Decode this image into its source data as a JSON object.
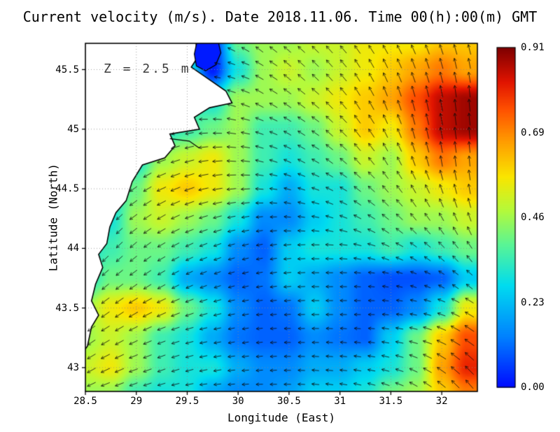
{
  "title": "Current velocity (m/s). Date 2018.11.06. Time 00(h):00(m) GMT",
  "annotation_z": "Z = 2.5 m",
  "axes": {
    "xlabel": "Longitude (East)",
    "ylabel": "Latitude (North)",
    "xlim": [
      28.5,
      32.35
    ],
    "ylim": [
      42.8,
      45.72
    ],
    "xtick_labels": [
      "28.5",
      "29",
      "29.5",
      "30",
      "30.5",
      "31",
      "31.5",
      "32"
    ],
    "xtick_values": [
      28.5,
      29,
      29.5,
      30,
      30.5,
      31,
      31.5,
      32
    ],
    "ytick_labels": [
      "43",
      "43.5",
      "44",
      "44.5",
      "45",
      "45.5"
    ],
    "ytick_values": [
      43,
      43.5,
      44,
      44.5,
      45,
      45.5
    ],
    "grid": "dotted"
  },
  "colorbar": {
    "min": 0.0,
    "max": 0.91,
    "tick_labels": [
      "0.91",
      "0.69",
      "0.46",
      "0.23",
      "0.00"
    ],
    "tick_values": [
      0.91,
      0.6825,
      0.455,
      0.2275,
      0.0
    ]
  },
  "chart_data": {
    "type": "heatmap",
    "title": "Current velocity (m/s). Date 2018.11.06. Time 00(h):00(m) GMT",
    "units": "m/s",
    "depth_label": "Z = 2.5 m",
    "date": "2018.11.06",
    "time": "00(h):00(m) GMT",
    "xlabel": "Longitude (East)",
    "ylabel": "Latitude (North)",
    "xlim": [
      28.5,
      32.35
    ],
    "ylim": [
      42.8,
      45.72
    ],
    "vmin": 0.0,
    "vmax": 0.91,
    "lon": [
      28.5,
      28.75,
      29.0,
      29.25,
      29.5,
      29.75,
      30.0,
      30.25,
      30.5,
      30.75,
      31.0,
      31.25,
      31.5,
      31.75,
      32.0,
      32.25
    ],
    "lat_north_to_south": [
      45.75,
      45.5,
      45.25,
      45.0,
      44.75,
      44.5,
      44.25,
      44.0,
      43.75,
      43.5,
      43.25,
      43.0,
      42.8
    ],
    "speed": [
      [
        0.3,
        0.3,
        0.3,
        0.3,
        0.3,
        0.02,
        0.4,
        0.45,
        0.45,
        0.5,
        0.5,
        0.55,
        0.55,
        0.55,
        0.6,
        0.6
      ],
      [
        0.3,
        0.3,
        0.3,
        0.3,
        0.3,
        0.02,
        0.3,
        0.45,
        0.5,
        0.45,
        0.5,
        0.55,
        0.6,
        0.65,
        0.7,
        0.65
      ],
      [
        0.3,
        0.3,
        0.3,
        0.3,
        0.35,
        0.3,
        0.45,
        0.45,
        0.45,
        0.5,
        0.55,
        0.6,
        0.65,
        0.75,
        0.85,
        0.88
      ],
      [
        0.3,
        0.3,
        0.3,
        0.3,
        0.35,
        0.4,
        0.45,
        0.35,
        0.35,
        0.4,
        0.5,
        0.6,
        0.55,
        0.7,
        0.85,
        0.88
      ],
      [
        0.3,
        0.3,
        0.3,
        0.45,
        0.5,
        0.55,
        0.45,
        0.35,
        0.3,
        0.35,
        0.4,
        0.5,
        0.45,
        0.6,
        0.7,
        0.65
      ],
      [
        0.3,
        0.3,
        0.4,
        0.55,
        0.6,
        0.55,
        0.45,
        0.3,
        0.2,
        0.3,
        0.3,
        0.4,
        0.45,
        0.5,
        0.55,
        0.6
      ],
      [
        0.3,
        0.3,
        0.45,
        0.5,
        0.45,
        0.4,
        0.3,
        0.15,
        0.15,
        0.25,
        0.3,
        0.35,
        0.4,
        0.45,
        0.45,
        0.5
      ],
      [
        0.3,
        0.35,
        0.4,
        0.4,
        0.35,
        0.3,
        0.15,
        0.1,
        0.25,
        0.3,
        0.3,
        0.3,
        0.35,
        0.3,
        0.35,
        0.4
      ],
      [
        0.3,
        0.4,
        0.4,
        0.35,
        0.2,
        0.15,
        0.1,
        0.12,
        0.25,
        0.2,
        0.15,
        0.1,
        0.08,
        0.08,
        0.1,
        0.25
      ],
      [
        0.45,
        0.55,
        0.6,
        0.55,
        0.4,
        0.3,
        0.15,
        0.1,
        0.12,
        0.25,
        0.15,
        0.1,
        0.1,
        0.15,
        0.3,
        0.55
      ],
      [
        0.45,
        0.5,
        0.45,
        0.35,
        0.3,
        0.2,
        0.12,
        0.1,
        0.1,
        0.15,
        0.12,
        0.1,
        0.25,
        0.4,
        0.6,
        0.75
      ],
      [
        0.5,
        0.55,
        0.45,
        0.35,
        0.3,
        0.3,
        0.2,
        0.15,
        0.15,
        0.2,
        0.2,
        0.25,
        0.3,
        0.4,
        0.65,
        0.8
      ],
      [
        0.45,
        0.45,
        0.35,
        0.3,
        0.3,
        0.2,
        0.15,
        0.15,
        0.18,
        0.25,
        0.25,
        0.3,
        0.4,
        0.45,
        0.6,
        0.7
      ]
    ],
    "angle_deg": [
      [
        150,
        150,
        150,
        150,
        150,
        160,
        150,
        140,
        140,
        135,
        130,
        125,
        120,
        115,
        110,
        105
      ],
      [
        160,
        160,
        160,
        160,
        160,
        170,
        160,
        150,
        140,
        135,
        130,
        120,
        115,
        110,
        105,
        100
      ],
      [
        170,
        170,
        170,
        170,
        180,
        170,
        160,
        150,
        145,
        140,
        130,
        120,
        110,
        105,
        100,
        95
      ],
      [
        190,
        190,
        190,
        200,
        190,
        180,
        170,
        160,
        150,
        145,
        135,
        125,
        115,
        105,
        100,
        95
      ],
      [
        205,
        205,
        210,
        200,
        195,
        185,
        175,
        165,
        155,
        150,
        140,
        130,
        120,
        110,
        100,
        95
      ],
      [
        215,
        220,
        215,
        205,
        200,
        190,
        185,
        175,
        165,
        160,
        150,
        140,
        130,
        120,
        110,
        100
      ],
      [
        230,
        225,
        215,
        210,
        200,
        195,
        190,
        185,
        175,
        170,
        160,
        150,
        140,
        130,
        120,
        110
      ],
      [
        230,
        225,
        220,
        210,
        205,
        200,
        195,
        190,
        185,
        180,
        175,
        165,
        155,
        145,
        135,
        125
      ],
      [
        225,
        220,
        215,
        210,
        205,
        200,
        195,
        190,
        185,
        180,
        180,
        175,
        170,
        160,
        150,
        140
      ],
      [
        220,
        215,
        210,
        205,
        200,
        195,
        190,
        185,
        185,
        180,
        180,
        180,
        175,
        170,
        160,
        150
      ],
      [
        215,
        210,
        205,
        200,
        195,
        190,
        190,
        185,
        180,
        180,
        175,
        175,
        170,
        165,
        155,
        145
      ],
      [
        210,
        205,
        200,
        200,
        195,
        190,
        185,
        185,
        180,
        175,
        175,
        170,
        165,
        155,
        145,
        135
      ],
      [
        205,
        200,
        200,
        195,
        190,
        185,
        185,
        180,
        180,
        175,
        170,
        165,
        160,
        150,
        140,
        130
      ]
    ],
    "coastline": [
      [
        28.45,
        45.78
      ],
      [
        29.58,
        45.78
      ],
      [
        29.6,
        45.6
      ],
      [
        29.54,
        45.52
      ],
      [
        29.66,
        45.45
      ],
      [
        29.88,
        45.32
      ],
      [
        29.94,
        45.22
      ],
      [
        29.72,
        45.18
      ],
      [
        29.57,
        45.1
      ],
      [
        29.62,
        45.0
      ],
      [
        29.33,
        44.96
      ],
      [
        29.38,
        44.86
      ],
      [
        29.28,
        44.76
      ],
      [
        29.06,
        44.7
      ],
      [
        28.96,
        44.56
      ],
      [
        28.9,
        44.4
      ],
      [
        28.8,
        44.3
      ],
      [
        28.74,
        44.18
      ],
      [
        28.71,
        44.04
      ],
      [
        28.63,
        43.95
      ],
      [
        28.67,
        43.84
      ],
      [
        28.6,
        43.7
      ],
      [
        28.56,
        43.56
      ],
      [
        28.63,
        43.44
      ],
      [
        28.56,
        43.34
      ],
      [
        28.52,
        43.18
      ],
      [
        28.45,
        43.1
      ]
    ],
    "estuary": [
      [
        29.6,
        45.75
      ],
      [
        29.8,
        45.75
      ],
      [
        29.83,
        45.64
      ],
      [
        29.78,
        45.54
      ],
      [
        29.68,
        45.49
      ],
      [
        29.59,
        45.53
      ],
      [
        29.57,
        45.63
      ]
    ],
    "spit": [
      [
        29.33,
        44.92
      ],
      [
        29.52,
        44.9
      ],
      [
        29.62,
        44.84
      ]
    ]
  }
}
